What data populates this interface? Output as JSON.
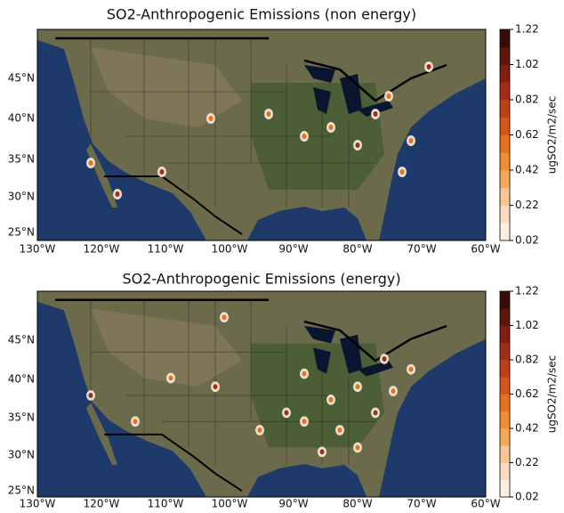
{
  "maps": [
    {
      "title": "SO2-Anthropogenic Emissions (non energy)",
      "lat_labels": [
        "45°N",
        "40°N",
        "35°N",
        "30°N",
        "25°N"
      ],
      "lon_labels": [
        "130°W",
        "120°W",
        "110°W",
        "100°W",
        "90°W",
        "80°W",
        "70°W",
        "60°W"
      ],
      "colorbar": {
        "label": "ugSO2/m2/sec",
        "lim": [
          0.02,
          1.22
        ],
        "ticks": [
          0.02,
          0.22,
          0.42,
          0.62,
          0.82,
          1.02,
          1.22
        ],
        "colors": [
          "#fdf0e4",
          "#fbdcc0",
          "#f9c592",
          "#f6a75c",
          "#f28c32",
          "#e8701e",
          "#d6561a",
          "#bf4017",
          "#a12d14",
          "#821f10",
          "#60150b",
          "#3a0b06"
        ]
      }
    },
    {
      "title": "SO2-Anthropogenic Emissions (energy)",
      "lat_labels": [
        "45°N",
        "40°N",
        "35°N",
        "30°N",
        "25°N"
      ],
      "lon_labels": [
        "130°W",
        "120°W",
        "110°W",
        "100°W",
        "90°W",
        "80°W",
        "70°W",
        "60°W"
      ],
      "colorbar": {
        "label": "ugSO2/m2/sec",
        "lim": [
          0.02,
          1.22
        ],
        "ticks": [
          0.02,
          0.22,
          0.42,
          0.62,
          0.82,
          1.02,
          1.22
        ],
        "colors": [
          "#fdf0e4",
          "#fbdcc0",
          "#f9c592",
          "#f6a75c",
          "#f28c32",
          "#e8701e",
          "#d6561a",
          "#bf4017",
          "#a12d14",
          "#821f10",
          "#60150b",
          "#3a0b06"
        ]
      }
    }
  ]
}
